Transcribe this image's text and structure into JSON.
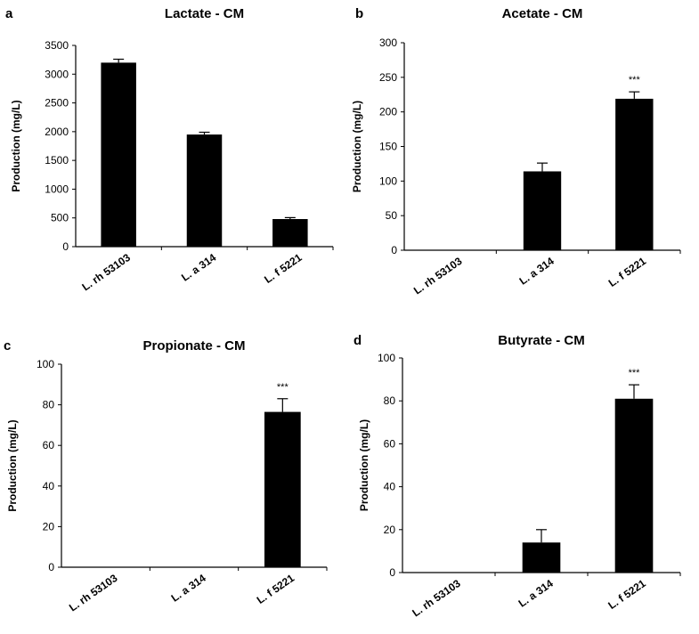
{
  "chart_data": [
    {
      "type": "bar",
      "panel": "a",
      "title": "Lactate - CM",
      "ylabel": "Production (mg/L)",
      "categories": [
        "L. rh 53103",
        "L. a 314",
        "L. f 5221"
      ],
      "values": [
        3200,
        1950,
        480
      ],
      "errors": [
        60,
        40,
        25
      ],
      "significance": [
        "",
        "",
        ""
      ],
      "ylim": [
        0,
        3500
      ],
      "yticks": [
        "0",
        "500",
        "1000",
        "1500",
        "2000",
        "2500",
        "3000",
        "3500"
      ],
      "bar_color": "#000000"
    },
    {
      "type": "bar",
      "panel": "b",
      "title": "Acetate - CM",
      "ylabel": "Production (mg/L)",
      "categories": [
        "L. rh 53103",
        "L. a 314",
        "L. f 5221"
      ],
      "values": [
        0,
        114,
        219
      ],
      "errors": [
        0,
        12,
        10
      ],
      "significance": [
        "",
        "",
        "***"
      ],
      "ylim": [
        0,
        300
      ],
      "yticks": [
        "0",
        "50",
        "100",
        "150",
        "200",
        "250",
        "300"
      ],
      "bar_color": "#000000"
    },
    {
      "type": "bar",
      "panel": "c",
      "title": "Propionate - CM",
      "ylabel": "Production (mg/L)",
      "categories": [
        "L. rh 53103",
        "L. a 314",
        "L. f 5221"
      ],
      "values": [
        0,
        0,
        76.5
      ],
      "errors": [
        0,
        0,
        6.5
      ],
      "significance": [
        "",
        "",
        "***"
      ],
      "ylim": [
        0,
        100
      ],
      "yticks": [
        "0",
        "20",
        "40",
        "60",
        "80",
        "100"
      ],
      "bar_color": "#000000"
    },
    {
      "type": "bar",
      "panel": "d",
      "title": "Butyrate - CM",
      "ylabel": "Production (mg/L)",
      "categories": [
        "L. rh 53103",
        "L. a 314",
        "L. f 5221"
      ],
      "values": [
        0,
        14,
        81
      ],
      "errors": [
        0,
        6,
        6.5
      ],
      "significance": [
        "",
        "",
        "***"
      ],
      "ylim": [
        0,
        100
      ],
      "yticks": [
        "0",
        "20",
        "40",
        "60",
        "80",
        "100"
      ],
      "bar_color": "#000000"
    }
  ]
}
